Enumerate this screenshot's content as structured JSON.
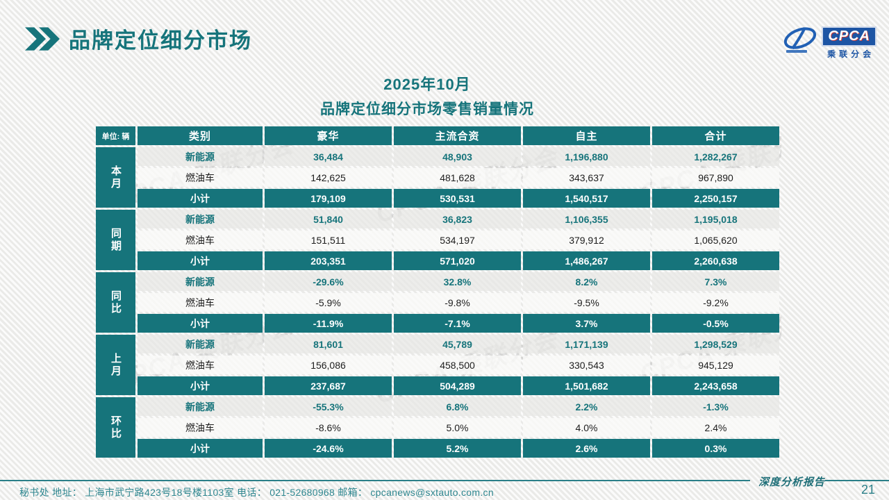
{
  "page": {
    "header_title": "品牌定位细分市场",
    "report_label": "深度分析报告",
    "page_number": "21",
    "contact_line": "秘书处   地址： 上海市武宁路423号18号楼1103室  电话： 021-52680968   邮箱： cpcanews@sxtauto.com.cn",
    "watermark": "CPCA 乘联分会"
  },
  "logo": {
    "acronym": "CPCA",
    "name": "乘联分会"
  },
  "table_title": {
    "line1": "2025年10月",
    "line2": "品牌定位细分市场零售销量情况"
  },
  "table": {
    "unit_label": "单位: 辆",
    "columns": [
      "类别",
      "豪华",
      "主流合资",
      "自主",
      "合计"
    ],
    "groups": [
      {
        "label": "本月",
        "rows": [
          {
            "category": "新能源",
            "style": "nev",
            "values": [
              "36,484",
              "48,903",
              "1,196,880",
              "1,282,267"
            ]
          },
          {
            "category": "燃油车",
            "style": "ice",
            "values": [
              "142,625",
              "481,628",
              "343,637",
              "967,890"
            ]
          },
          {
            "category": "小计",
            "style": "subtotal",
            "values": [
              "179,109",
              "530,531",
              "1,540,517",
              "2,250,157"
            ]
          }
        ]
      },
      {
        "label": "同期",
        "rows": [
          {
            "category": "新能源",
            "style": "nev",
            "values": [
              "51,840",
              "36,823",
              "1,106,355",
              "1,195,018"
            ]
          },
          {
            "category": "燃油车",
            "style": "ice",
            "values": [
              "151,511",
              "534,197",
              "379,912",
              "1,065,620"
            ]
          },
          {
            "category": "小计",
            "style": "subtotal",
            "values": [
              "203,351",
              "571,020",
              "1,486,267",
              "2,260,638"
            ]
          }
        ]
      },
      {
        "label": "同比",
        "rows": [
          {
            "category": "新能源",
            "style": "nev",
            "values": [
              "-29.6%",
              "32.8%",
              "8.2%",
              "7.3%"
            ]
          },
          {
            "category": "燃油车",
            "style": "ice",
            "values": [
              "-5.9%",
              "-9.8%",
              "-9.5%",
              "-9.2%"
            ]
          },
          {
            "category": "小计",
            "style": "subtotal",
            "values": [
              "-11.9%",
              "-7.1%",
              "3.7%",
              "-0.5%"
            ]
          }
        ]
      },
      {
        "label": "上月",
        "rows": [
          {
            "category": "新能源",
            "style": "nev",
            "values": [
              "81,601",
              "45,789",
              "1,171,139",
              "1,298,529"
            ]
          },
          {
            "category": "燃油车",
            "style": "ice",
            "values": [
              "156,086",
              "458,500",
              "330,543",
              "945,129"
            ]
          },
          {
            "category": "小计",
            "style": "subtotal",
            "values": [
              "237,687",
              "504,289",
              "1,501,682",
              "2,243,658"
            ]
          }
        ]
      },
      {
        "label": "环比",
        "rows": [
          {
            "category": "新能源",
            "style": "nev",
            "values": [
              "-55.3%",
              "6.8%",
              "2.2%",
              "-1.3%"
            ]
          },
          {
            "category": "燃油车",
            "style": "ice",
            "values": [
              "-8.6%",
              "5.0%",
              "4.0%",
              "2.4%"
            ]
          },
          {
            "category": "小计",
            "style": "subtotal",
            "values": [
              "-24.6%",
              "5.2%",
              "2.6%",
              "0.3%"
            ]
          }
        ]
      }
    ]
  },
  "colors": {
    "teal": "#16747b",
    "logo_blue": "#1d55a4",
    "footer_teal": "#2f8790"
  }
}
